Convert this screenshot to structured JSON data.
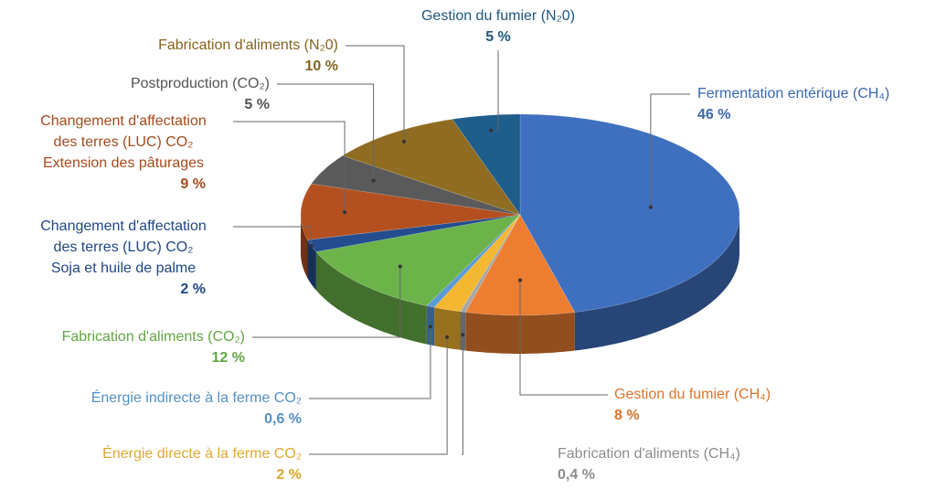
{
  "chart_data": {
    "type": "pie",
    "categories": [
      "Fermentation entérique (CH₄)",
      "Gestion du fumier (CH₄)",
      "Fabrication d'aliments (CH₄)",
      "Énergie directe à la ferme CO₂",
      "Énergie indirecte à la ferme CO₂",
      "Fabrication d'aliments (CO₂)",
      "Changement d'affectation\ndes terres (LUC) CO₂\nSoja et huile de palme",
      "Changement d'affectation\ndes terres (LUC) CO₂\nExtension des pâturages",
      "Postproduction (CO₂)",
      "Fabrication d'aliments (N₂0)",
      "Gestion du fumier (N₂0)"
    ],
    "values": [
      46,
      8,
      0.4,
      2,
      0.6,
      12,
      2,
      9,
      5,
      10,
      5
    ],
    "value_labels": [
      "46 %",
      "8 %",
      "0,4 %",
      "2 %",
      "0,6 %",
      "12 %",
      "2 %",
      "9 %",
      "5 %",
      "10 %",
      "5 %"
    ],
    "colors": [
      "#3f70bf",
      "#ed7d31",
      "#a6a6a6",
      "#f4b731",
      "#5b9bd5",
      "#6cb34a",
      "#234d8e",
      "#b4501f",
      "#5a5a5a",
      "#8f6c22",
      "#1f5d8a"
    ]
  }
}
